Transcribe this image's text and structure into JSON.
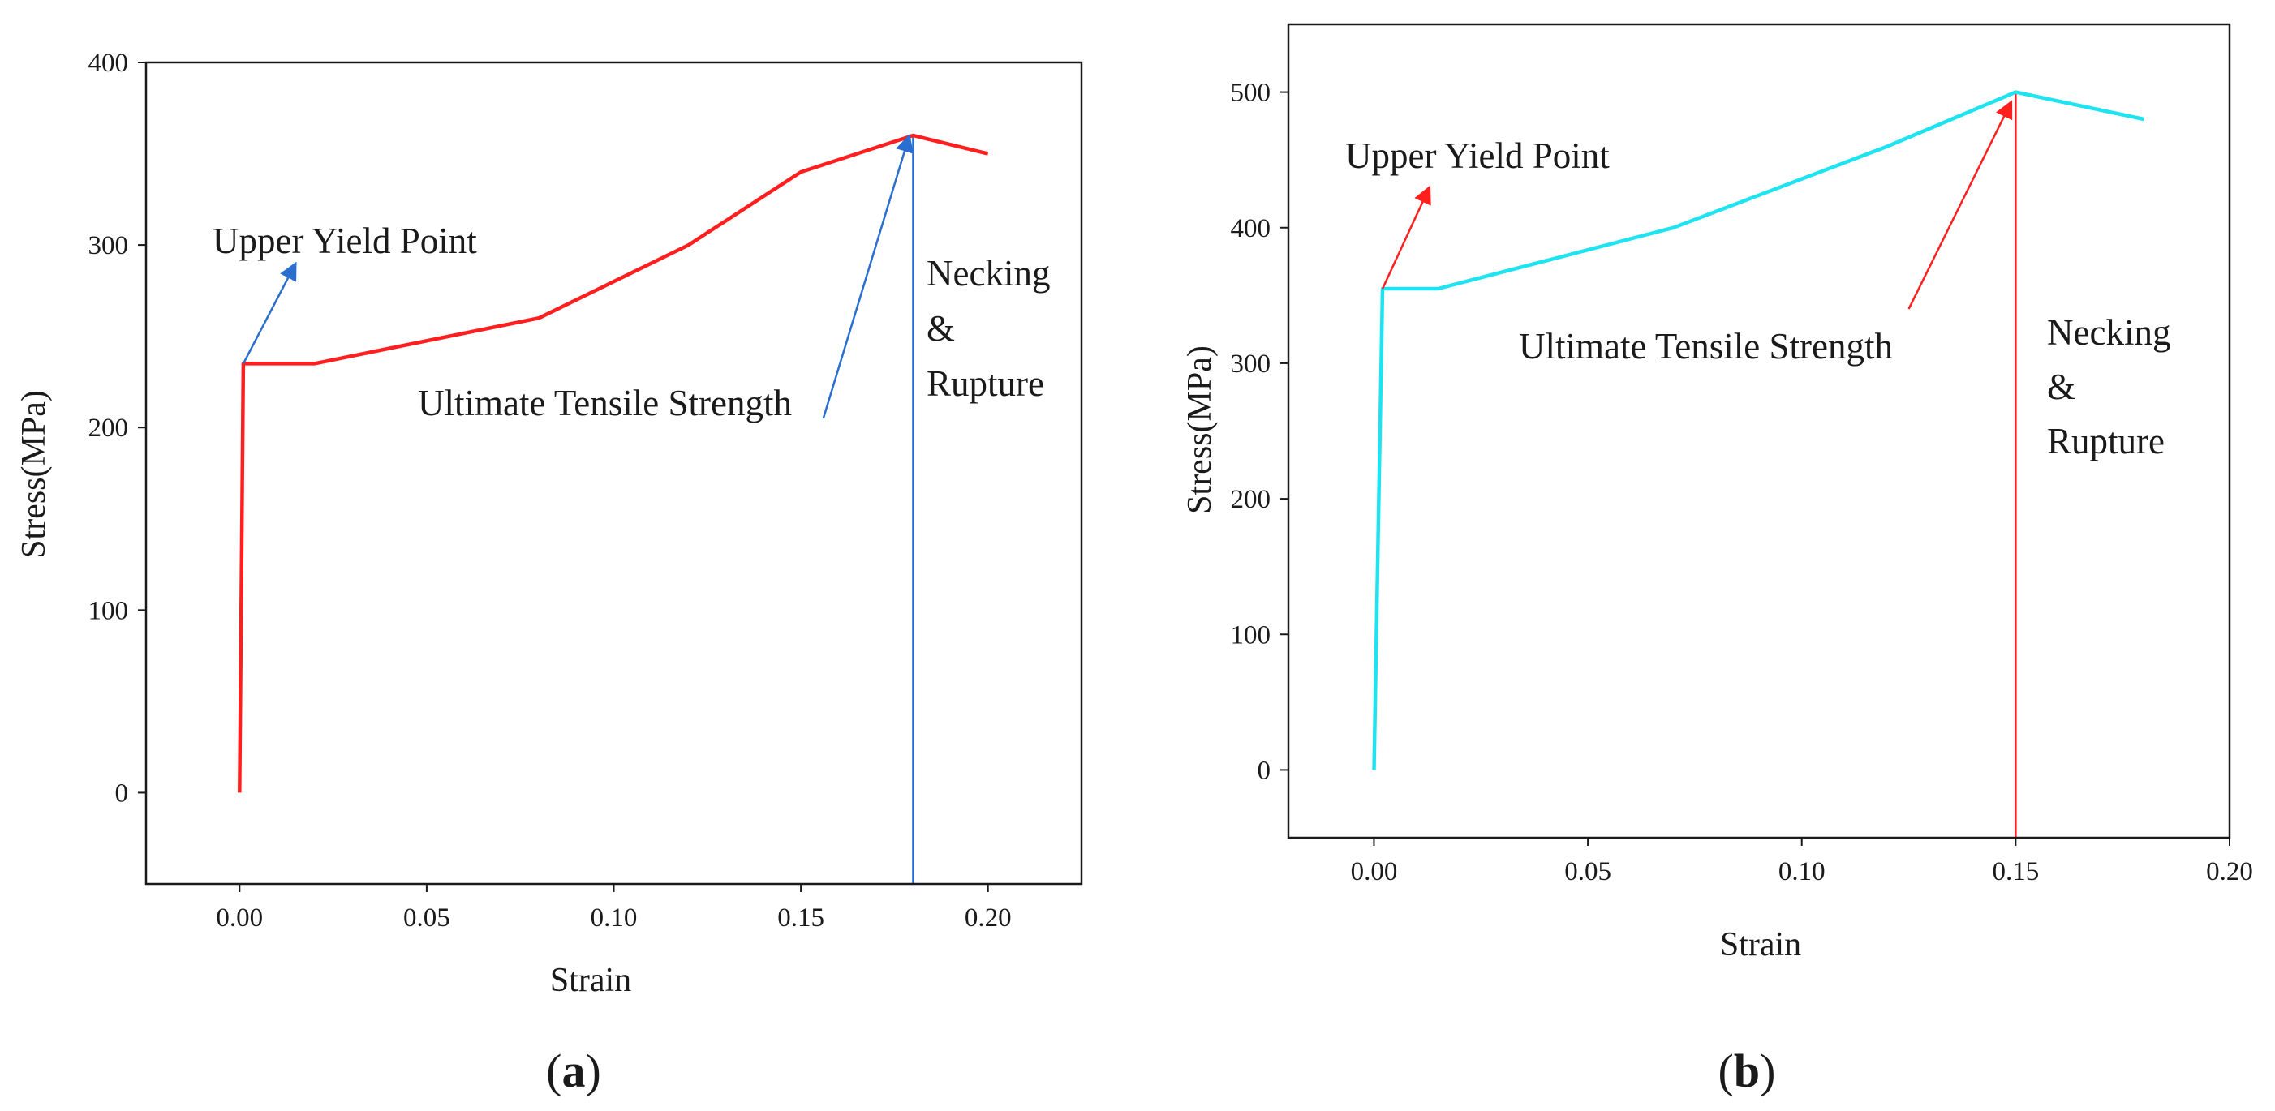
{
  "chart_data": [
    {
      "type": "line",
      "panel_label": {
        "open": "(",
        "letter": "a",
        "close": ")"
      },
      "xlabel": "Strain",
      "ylabel": "Stress(MPa)",
      "xlim": [
        -0.025,
        0.225
      ],
      "ylim": [
        -50,
        400
      ],
      "xticks": [
        0.0,
        0.05,
        0.1,
        0.15,
        0.2
      ],
      "xtick_labels": [
        "0.00",
        "0.05",
        "0.10",
        "0.15",
        "0.20"
      ],
      "yticks": [
        0,
        100,
        200,
        300,
        400
      ],
      "ytick_labels": [
        "0",
        "100",
        "200",
        "300",
        "400"
      ],
      "series": [
        {
          "name": "stress-strain",
          "color": "#ff1f1f",
          "x": [
            0.0,
            0.001,
            0.02,
            0.08,
            0.12,
            0.15,
            0.18,
            0.2
          ],
          "y": [
            0,
            235,
            235,
            260,
            300,
            340,
            360,
            350
          ]
        }
      ],
      "vline": {
        "x": 0.18,
        "color": "#2a6fd0"
      },
      "annotations": [
        {
          "text": "Upper Yield Point",
          "tx": 0.0,
          "ty": 297,
          "arrow_from": [
            0.001,
            235
          ],
          "arrow_to": [
            0.015,
            290
          ],
          "color": "#2a6fd0"
        },
        {
          "text": "Ultimate Tensile Strength",
          "tx": 0.052,
          "ty": 203,
          "arrow_from": [
            0.156,
            205
          ],
          "arrow_to": [
            0.179,
            360
          ],
          "color": "#2a6fd0"
        }
      ],
      "necking_lines": [
        "Necking",
        "&",
        "Rupture"
      ]
    },
    {
      "type": "line",
      "panel_label": {
        "open": "(",
        "letter": "b",
        "close": ")"
      },
      "xlabel": "Strain",
      "ylabel": "Stress(MPa)",
      "xlim": [
        -0.02,
        0.2
      ],
      "ylim": [
        -50,
        550
      ],
      "xticks": [
        0.0,
        0.05,
        0.1,
        0.15,
        0.2
      ],
      "xtick_labels": [
        "0.00",
        "0.05",
        "0.10",
        "0.15",
        "0.20"
      ],
      "yticks": [
        0,
        100,
        200,
        300,
        400,
        500
      ],
      "ytick_labels": [
        "0",
        "100",
        "200",
        "300",
        "400",
        "500"
      ],
      "series": [
        {
          "name": "stress-strain",
          "color": "#1ee3f0",
          "x": [
            0.0,
            0.002,
            0.015,
            0.07,
            0.12,
            0.15,
            0.18
          ],
          "y": [
            0,
            355,
            355,
            400,
            460,
            500,
            480
          ]
        }
      ],
      "vline": {
        "x": 0.15,
        "color": "#ff1f1f"
      },
      "annotations": [
        {
          "text": "Upper Yield Point",
          "tx": -0.007,
          "ty": 445,
          "arrow_from": [
            0.002,
            355
          ],
          "arrow_to": [
            0.013,
            430
          ],
          "color": "#ff1f1f"
        },
        {
          "text": "Ultimate Tensile Strength",
          "tx": 0.033,
          "ty": 310,
          "arrow_from": [
            0.125,
            340
          ],
          "arrow_to": [
            0.149,
            493
          ],
          "color": "#ff1f1f"
        }
      ],
      "necking_lines": [
        "Necking",
        "&",
        "Rupture"
      ]
    }
  ]
}
